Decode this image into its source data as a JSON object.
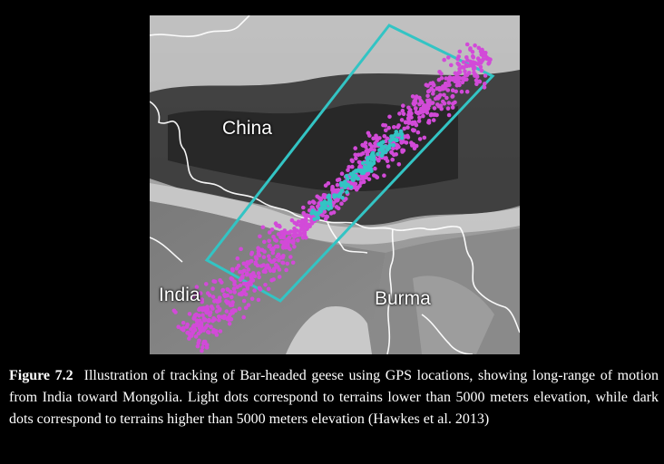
{
  "map": {
    "labels": {
      "china": "China",
      "india": "India",
      "burma": "Burma"
    },
    "colors": {
      "box": "#33c4c4",
      "high_dots": "#d24ad8",
      "low_dots": "#33c4c4",
      "background": "#9a9a9a"
    }
  },
  "caption": {
    "label": "Figure 7.2",
    "text": "Illustration of tracking of Bar-headed geese using GPS locations, showing long-range of motion from India toward Mongolia. Light dots correspond to terrains lower than 5000 meters elevation, while dark dots correspond to terrains higher than 5000 meters elevation (Hawkes et al. 2013)"
  }
}
